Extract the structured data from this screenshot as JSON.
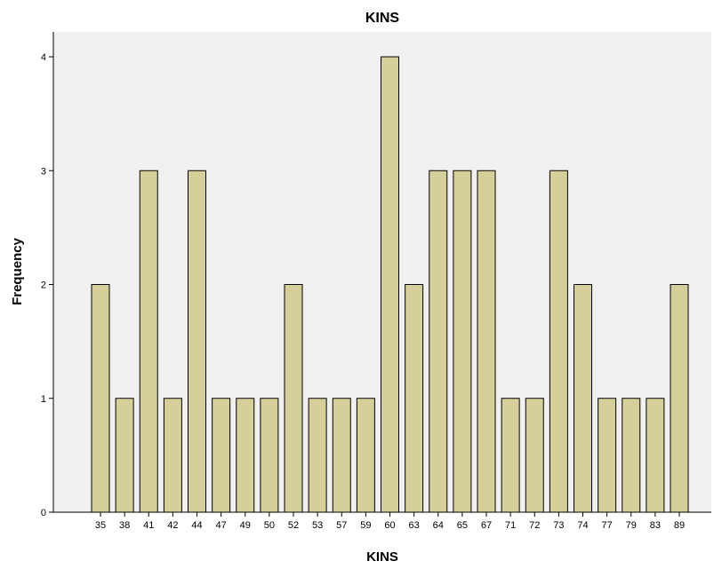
{
  "chart_data": {
    "type": "bar",
    "title": "KINS",
    "xlabel": "KINS",
    "ylabel": "Frequency",
    "categories": [
      "35",
      "38",
      "41",
      "42",
      "44",
      "47",
      "49",
      "50",
      "52",
      "53",
      "57",
      "59",
      "60",
      "63",
      "64",
      "65",
      "67",
      "71",
      "72",
      "73",
      "74",
      "77",
      "79",
      "83",
      "89"
    ],
    "values": [
      2,
      1,
      3,
      1,
      3,
      1,
      1,
      1,
      2,
      1,
      1,
      1,
      4,
      2,
      3,
      3,
      3,
      1,
      1,
      3,
      2,
      1,
      1,
      1,
      2
    ],
    "ylim": [
      0,
      4
    ],
    "yticks": [
      "0",
      "1",
      "2",
      "3",
      "4"
    ],
    "grid": false,
    "legend": "none",
    "colors": {
      "bar_fill": "#D6CF9A",
      "bar_stroke": "#000000",
      "plot_background": "#F0F0F0",
      "axis": "#000000"
    }
  }
}
